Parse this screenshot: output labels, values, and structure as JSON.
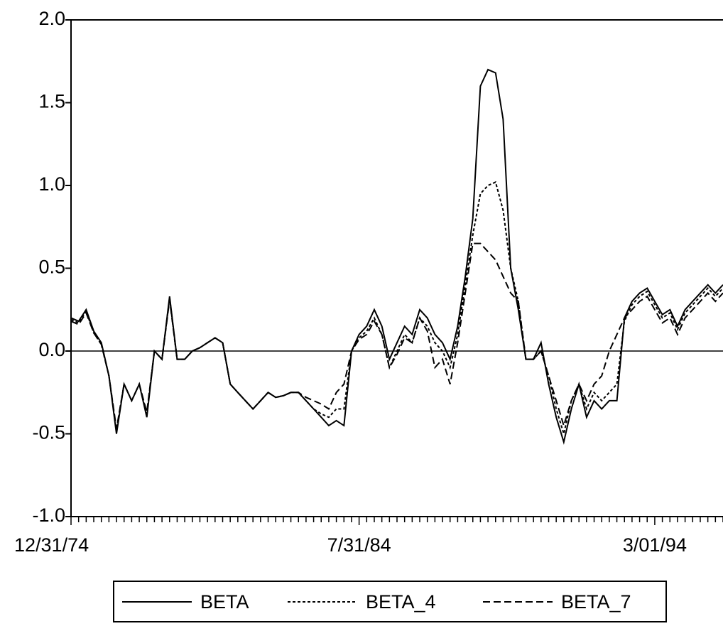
{
  "chart_data": {
    "type": "line",
    "categories": [
      "12/31/74",
      null,
      null,
      null,
      null,
      null,
      null,
      null,
      null,
      null,
      null,
      null,
      null,
      null,
      null,
      null,
      null,
      null,
      null,
      null,
      null,
      null,
      null,
      null,
      null,
      null,
      null,
      null,
      null,
      null,
      null,
      null,
      null,
      null,
      null,
      null,
      null,
      null,
      "7/31/84",
      null,
      null,
      null,
      null,
      null,
      null,
      null,
      null,
      null,
      null,
      null,
      null,
      null,
      null,
      null,
      null,
      null,
      null,
      null,
      null,
      null,
      null,
      null,
      null,
      null,
      null,
      null,
      null,
      null,
      null,
      null,
      null,
      null,
      null,
      null,
      null,
      null,
      null,
      "3/01/94",
      null,
      null,
      null,
      null,
      null,
      null,
      null,
      null,
      null
    ],
    "series": [
      {
        "name": "BETA",
        "color": "#000000",
        "style": "solid",
        "values": [
          0.2,
          0.18,
          0.25,
          0.12,
          0.05,
          -0.15,
          -0.5,
          -0.2,
          -0.3,
          -0.2,
          -0.4,
          0.0,
          -0.05,
          0.33,
          -0.05,
          -0.05,
          0.0,
          0.02,
          0.05,
          0.08,
          0.05,
          -0.2,
          -0.25,
          -0.3,
          -0.35,
          -0.3,
          -0.25,
          -0.28,
          -0.27,
          -0.25,
          -0.25,
          -0.3,
          -0.35,
          -0.4,
          -0.45,
          -0.42,
          -0.45,
          0.0,
          0.1,
          0.15,
          0.25,
          0.15,
          -0.05,
          0.05,
          0.15,
          0.1,
          0.25,
          0.2,
          0.1,
          0.05,
          -0.05,
          0.15,
          0.45,
          0.8,
          1.6,
          1.7,
          1.68,
          1.4,
          0.5,
          0.25,
          -0.05,
          -0.05,
          0.05,
          -0.2,
          -0.4,
          -0.55,
          -0.35,
          -0.2,
          -0.4,
          -0.3,
          -0.35,
          -0.3,
          -0.3,
          0.2,
          0.3,
          0.35,
          0.38,
          0.3,
          0.22,
          0.25,
          0.15,
          0.25,
          0.3,
          0.35,
          0.4,
          0.35,
          0.4
        ]
      },
      {
        "name": "BETA_4",
        "color": "#000000",
        "style": "dotted",
        "values": [
          0.19,
          0.17,
          0.24,
          0.11,
          0.04,
          -0.15,
          -0.48,
          -0.2,
          -0.3,
          -0.2,
          -0.38,
          0.0,
          -0.05,
          0.32,
          -0.05,
          -0.05,
          0.0,
          0.02,
          0.05,
          0.08,
          0.05,
          -0.2,
          -0.25,
          -0.3,
          -0.35,
          -0.3,
          -0.25,
          -0.28,
          -0.27,
          -0.25,
          -0.25,
          -0.3,
          -0.35,
          -0.38,
          -0.4,
          -0.35,
          -0.35,
          0.0,
          0.08,
          0.12,
          0.2,
          0.1,
          -0.1,
          0.0,
          0.1,
          0.05,
          0.2,
          0.15,
          0.05,
          0.0,
          -0.1,
          0.1,
          0.4,
          0.7,
          0.95,
          1.0,
          1.02,
          0.85,
          0.5,
          0.3,
          -0.05,
          -0.05,
          0.0,
          -0.15,
          -0.35,
          -0.5,
          -0.3,
          -0.2,
          -0.35,
          -0.25,
          -0.3,
          -0.25,
          -0.2,
          0.18,
          0.28,
          0.33,
          0.36,
          0.28,
          0.2,
          0.23,
          0.13,
          0.23,
          0.28,
          0.33,
          0.38,
          0.33,
          0.38
        ]
      },
      {
        "name": "BETA_7",
        "color": "#000000",
        "style": "dashed",
        "values": [
          0.18,
          0.16,
          0.23,
          0.11,
          0.04,
          -0.15,
          -0.47,
          -0.2,
          -0.3,
          -0.2,
          -0.37,
          0.0,
          -0.05,
          0.31,
          -0.05,
          -0.05,
          0.0,
          0.02,
          0.05,
          0.08,
          0.05,
          -0.2,
          -0.25,
          -0.3,
          -0.35,
          -0.3,
          -0.25,
          -0.28,
          -0.27,
          -0.25,
          -0.25,
          -0.28,
          -0.3,
          -0.32,
          -0.35,
          -0.25,
          -0.2,
          0.0,
          0.07,
          0.1,
          0.18,
          0.1,
          -0.1,
          -0.02,
          0.08,
          0.05,
          0.2,
          0.12,
          -0.1,
          -0.05,
          -0.2,
          0.05,
          0.35,
          0.65,
          0.65,
          0.6,
          0.55,
          0.45,
          0.35,
          0.3,
          -0.05,
          -0.05,
          0.0,
          -0.15,
          -0.3,
          -0.45,
          -0.3,
          -0.2,
          -0.3,
          -0.2,
          -0.15,
          0.0,
          0.1,
          0.2,
          0.25,
          0.3,
          0.33,
          0.25,
          0.17,
          0.2,
          0.1,
          0.2,
          0.25,
          0.3,
          0.35,
          0.3,
          0.35
        ]
      }
    ],
    "ylim": [
      -1.0,
      2.0
    ],
    "yticks": [
      {
        "value": -1.0,
        "label": "-1.0"
      },
      -0.5,
      {
        "value": 0.0,
        "label": "0.0"
      },
      0.5,
      {
        "value": 1.0,
        "label": "1.0"
      },
      1.5,
      {
        "value": 2.0,
        "label": "2.0"
      }
    ],
    "zero_line": true,
    "legend": "bottom"
  }
}
